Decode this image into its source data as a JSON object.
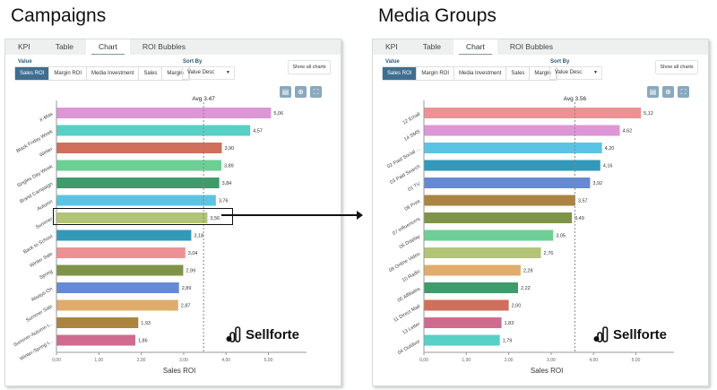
{
  "panels": [
    {
      "title": "Campaigns",
      "tabs": [
        "KPI",
        "Table",
        "Chart",
        "ROI Bubbles"
      ],
      "active_tab": "Chart",
      "value_label": "Value",
      "value_options": [
        "Sales ROI",
        "Margin ROI",
        "Media Investment",
        "Sales",
        "Margin"
      ],
      "value_selected": "Sales ROI",
      "sort_label": "Sort By",
      "sort_value": "Value Desc",
      "show_all": "Show all charts",
      "icons": [
        "export-icon",
        "zoom-icon",
        "fullscreen-icon"
      ],
      "brand": "Sellforte",
      "chart_data": {
        "type": "bar",
        "orientation": "horizontal",
        "xlabel": "Sales ROI",
        "xlim": [
          0,
          5.5
        ],
        "xticks": [
          "0,00",
          "1,00",
          "2,00",
          "3,00",
          "4,00",
          "5,00"
        ],
        "average": {
          "label": "Avg 3.47",
          "value": 3.47
        },
        "categories": [
          "X-Mas",
          "Black Friday Week",
          "Winter",
          "Singles Day Week",
          "Brand Campaign",
          "Autumn",
          "Summer",
          "Back to School",
          "Winter Sale",
          "Spring",
          "Always-On",
          "Summer Sale",
          "Summer-Autumn t...",
          "Winter-Spring t..."
        ],
        "values": [
          5.06,
          4.57,
          3.9,
          3.89,
          3.84,
          3.76,
          3.56,
          3.18,
          3.04,
          2.99,
          2.89,
          2.87,
          1.93,
          1.86
        ],
        "labels": [
          "5,06",
          "4,57",
          "3,90",
          "3,89",
          "3,84",
          "3,76",
          "3,56",
          "3,18",
          "3,04",
          "2,99",
          "2,89",
          "2,87",
          "1,93",
          "1,86"
        ],
        "colors": [
          "#dd96d6",
          "#57d0c6",
          "#cf6f5c",
          "#6dcf96",
          "#3f9a6c",
          "#5bc4e5",
          "#b2c476",
          "#3399b9",
          "#ee9195",
          "#7f9448",
          "#6689d3",
          "#dfac6c",
          "#ab8440",
          "#cf6b8e"
        ],
        "highlighted": "Summer"
      }
    },
    {
      "title": "Media Groups",
      "tabs": [
        "KPI",
        "Table",
        "Chart",
        "ROI Bubbles"
      ],
      "active_tab": "Chart",
      "value_label": "Value",
      "value_options": [
        "Sales ROI",
        "Margin ROI",
        "Media Investment",
        "Sales",
        "Margin"
      ],
      "value_selected": "Sales ROI",
      "sort_label": "Sort By",
      "sort_value": "Value Desc",
      "show_all": "Show all charts",
      "icons": [
        "export-icon",
        "zoom-icon",
        "fullscreen-icon"
      ],
      "brand": "Sellforte",
      "chart_data": {
        "type": "bar",
        "orientation": "horizontal",
        "xlabel": "Sales ROI",
        "xlim": [
          0,
          5.5
        ],
        "xticks": [
          "0,00",
          "1,00",
          "2,00",
          "3,00",
          "4,00",
          "5,00"
        ],
        "average": {
          "label": "Avg 3.56",
          "value": 3.56
        },
        "categories": [
          "12 Email",
          "14 SMS",
          "02 Paid Social ...",
          "03 Paid Search",
          "01 TV",
          "09 Print",
          "07 Influencers",
          "06 Display",
          "08 Online Video",
          "10 Radio",
          "05 Affiliates",
          "11 Direct Mail",
          "13 Letter",
          "04 Outdoor"
        ],
        "values": [
          5.12,
          4.62,
          4.2,
          4.16,
          3.92,
          3.57,
          3.49,
          3.05,
          2.76,
          2.28,
          2.22,
          2.0,
          1.83,
          1.79
        ],
        "labels": [
          "5,12",
          "4,62",
          "4,20",
          "4,16",
          "3,92",
          "3,57",
          "3,49",
          "3,05",
          "2,76",
          "2,28",
          "2,22",
          "2,00",
          "1,83",
          "1,79"
        ],
        "colors": [
          "#ee9195",
          "#dd96d6",
          "#5bc4e5",
          "#3399b9",
          "#6689d3",
          "#ab8440",
          "#7f9448",
          "#6dcf96",
          "#b2c476",
          "#dfac6c",
          "#3f9a6c",
          "#cf6f5c",
          "#cf6b8e",
          "#57d0c6"
        ]
      }
    }
  ]
}
